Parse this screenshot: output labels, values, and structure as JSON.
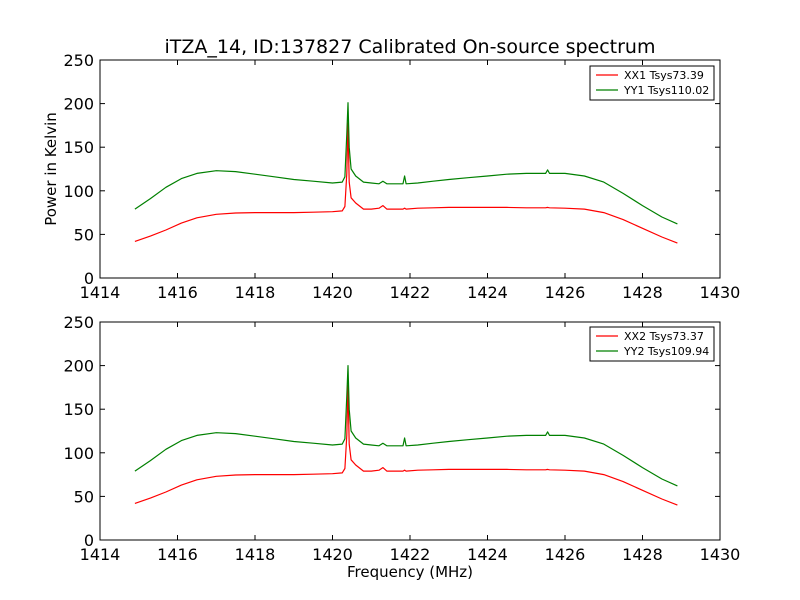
{
  "figure": {
    "title": "iTZA_14, ID:137827 Calibrated On-source spectrum",
    "ylabel": "Power in Kelvin",
    "xlabel": "Frequency (MHz)"
  },
  "chart_data": [
    {
      "type": "line",
      "title": "iTZA_14, ID:137827 Calibrated On-source spectrum",
      "xlabel": "",
      "ylabel": "Power in Kelvin",
      "xlim": [
        1414,
        1430
      ],
      "ylim": [
        0,
        250
      ],
      "xticks": [
        "1414",
        "1416",
        "1418",
        "1420",
        "1422",
        "1424",
        "1426",
        "1428",
        "1430"
      ],
      "yticks": [
        "0",
        "50",
        "100",
        "150",
        "200",
        "250"
      ],
      "grid": false,
      "legend_position": "top-right",
      "series": [
        {
          "name": "XX1 Tsys73.39",
          "color": "#ff0000",
          "x": [
            1414.9,
            1415.3,
            1415.7,
            1416.1,
            1416.5,
            1417.0,
            1417.5,
            1418.0,
            1418.5,
            1419.0,
            1419.5,
            1420.0,
            1420.25,
            1420.32,
            1420.37,
            1420.4,
            1420.43,
            1420.48,
            1420.6,
            1420.8,
            1421.0,
            1421.2,
            1421.3,
            1421.4,
            1421.6,
            1421.82,
            1421.86,
            1421.9,
            1422.2,
            1422.6,
            1423.0,
            1423.5,
            1424.0,
            1424.5,
            1425.0,
            1425.5,
            1425.55,
            1425.6,
            1426.0,
            1426.5,
            1427.0,
            1427.5,
            1428.0,
            1428.5,
            1428.9
          ],
          "y": [
            42,
            48,
            55,
            63,
            69,
            73,
            74.5,
            75,
            75,
            75,
            75.5,
            76,
            77,
            82,
            120,
            178,
            110,
            92,
            86,
            79,
            79,
            80,
            83,
            79,
            79,
            79,
            80,
            79,
            80,
            80.5,
            81,
            81,
            81,
            81,
            80.5,
            80.5,
            81,
            80.5,
            80,
            79,
            75,
            67,
            57,
            47,
            40
          ]
        },
        {
          "name": "YY1 Tsys110.02",
          "color": "#008000",
          "x": [
            1414.9,
            1415.3,
            1415.7,
            1416.1,
            1416.5,
            1417.0,
            1417.5,
            1418.0,
            1418.5,
            1419.0,
            1419.5,
            1420.0,
            1420.25,
            1420.32,
            1420.37,
            1420.4,
            1420.43,
            1420.48,
            1420.6,
            1420.8,
            1421.0,
            1421.2,
            1421.3,
            1421.4,
            1421.6,
            1421.82,
            1421.86,
            1421.9,
            1422.2,
            1422.6,
            1423.0,
            1423.5,
            1424.0,
            1424.5,
            1425.0,
            1425.5,
            1425.55,
            1425.6,
            1426.0,
            1426.5,
            1427.0,
            1427.5,
            1428.0,
            1428.5,
            1428.9
          ],
          "y": [
            79,
            91,
            104,
            114,
            120,
            123,
            122,
            119,
            116,
            113,
            111,
            109,
            110,
            116,
            165,
            201,
            150,
            125,
            117,
            110,
            109,
            108,
            111,
            108,
            108,
            108,
            117,
            108,
            109,
            111,
            113,
            115,
            117,
            119,
            120,
            120,
            124,
            120,
            120,
            117,
            110,
            97,
            83,
            70,
            62
          ]
        }
      ]
    },
    {
      "type": "line",
      "title": "",
      "xlabel": "Frequency (MHz)",
      "ylabel": "Power in Kelvin",
      "xlim": [
        1414,
        1430
      ],
      "ylim": [
        0,
        250
      ],
      "xticks": [
        "1414",
        "1416",
        "1418",
        "1420",
        "1422",
        "1424",
        "1426",
        "1428",
        "1430"
      ],
      "yticks": [
        "0",
        "50",
        "100",
        "150",
        "200",
        "250"
      ],
      "grid": false,
      "legend_position": "top-right",
      "series": [
        {
          "name": "XX2 Tsys73.37",
          "color": "#ff0000",
          "x": [
            1414.9,
            1415.3,
            1415.7,
            1416.1,
            1416.5,
            1417.0,
            1417.5,
            1418.0,
            1418.5,
            1419.0,
            1419.5,
            1420.0,
            1420.25,
            1420.32,
            1420.37,
            1420.4,
            1420.43,
            1420.48,
            1420.6,
            1420.8,
            1421.0,
            1421.2,
            1421.3,
            1421.4,
            1421.6,
            1421.82,
            1421.86,
            1421.9,
            1422.2,
            1422.6,
            1423.0,
            1423.5,
            1424.0,
            1424.5,
            1425.0,
            1425.5,
            1425.55,
            1425.6,
            1426.0,
            1426.5,
            1427.0,
            1427.5,
            1428.0,
            1428.5,
            1428.9
          ],
          "y": [
            42,
            48,
            55,
            63,
            69,
            73,
            74.5,
            75,
            75,
            75,
            75.5,
            76,
            77,
            82,
            120,
            178,
            110,
            92,
            86,
            79,
            79,
            80,
            83,
            79,
            79,
            79,
            80,
            79,
            80,
            80.5,
            81,
            81,
            81,
            81,
            80.5,
            80.5,
            81,
            80.5,
            80,
            79,
            75,
            67,
            57,
            47,
            40
          ]
        },
        {
          "name": "YY2 Tsys109.94",
          "color": "#008000",
          "x": [
            1414.9,
            1415.3,
            1415.7,
            1416.1,
            1416.5,
            1417.0,
            1417.5,
            1418.0,
            1418.5,
            1419.0,
            1419.5,
            1420.0,
            1420.25,
            1420.32,
            1420.37,
            1420.4,
            1420.43,
            1420.48,
            1420.6,
            1420.8,
            1421.0,
            1421.2,
            1421.3,
            1421.4,
            1421.6,
            1421.82,
            1421.86,
            1421.9,
            1422.2,
            1422.6,
            1423.0,
            1423.5,
            1424.0,
            1424.5,
            1425.0,
            1425.5,
            1425.55,
            1425.6,
            1426.0,
            1426.5,
            1427.0,
            1427.5,
            1428.0,
            1428.5,
            1428.9
          ],
          "y": [
            79,
            91,
            104,
            114,
            120,
            123,
            122,
            119,
            116,
            113,
            111,
            109,
            110,
            116,
            165,
            200,
            150,
            125,
            117,
            110,
            109,
            108,
            111,
            108,
            108,
            108,
            117,
            108,
            109,
            111,
            113,
            115,
            117,
            119,
            120,
            120,
            124,
            120,
            120,
            117,
            110,
            97,
            83,
            70,
            62
          ]
        }
      ]
    }
  ]
}
